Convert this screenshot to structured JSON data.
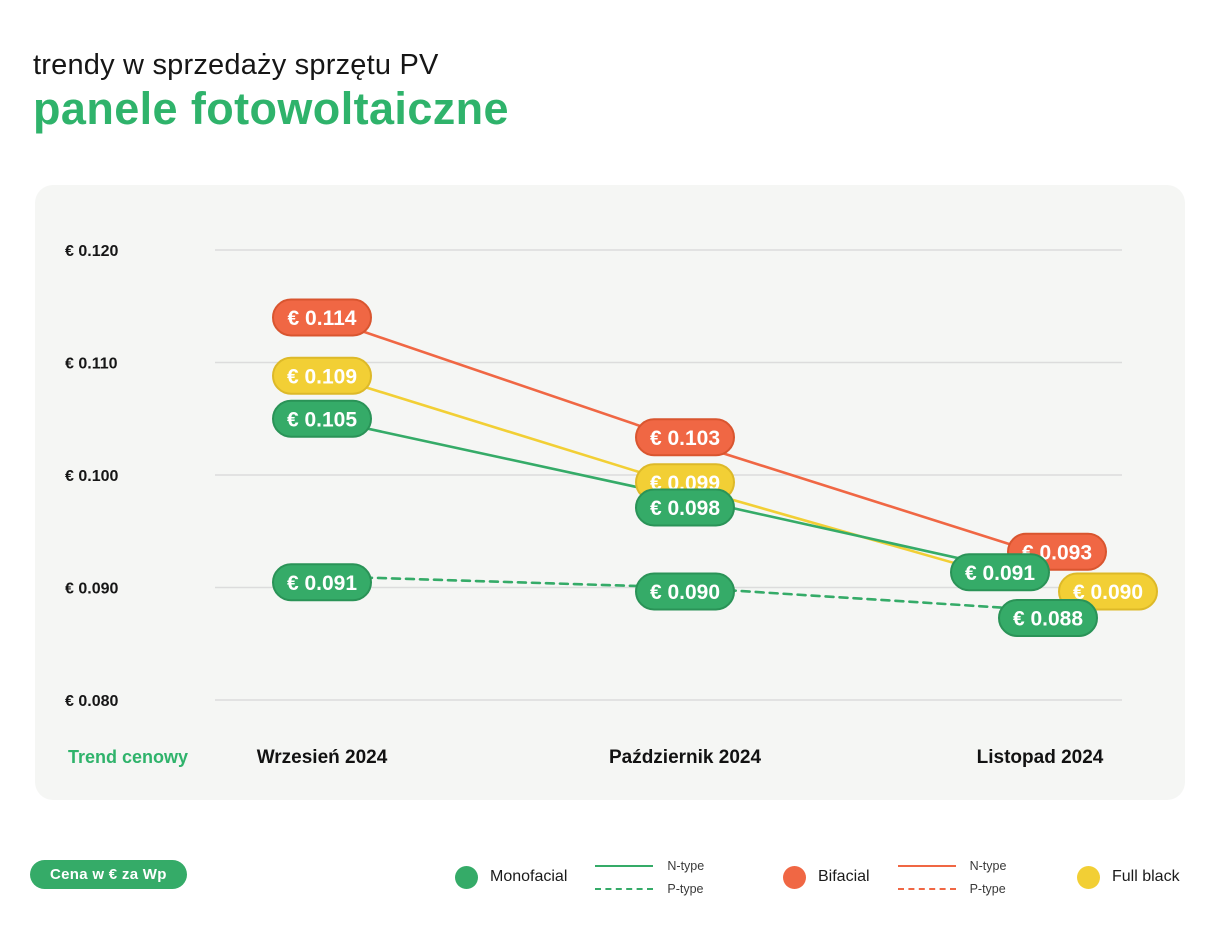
{
  "header": {
    "subtitle": "trendy w sprzedaży sprzętu PV",
    "title": "panele fotowoltaiczne"
  },
  "colors": {
    "green": "#35ab68",
    "green_border": "#2a9357",
    "orange": "#f06744",
    "orange_border": "#d9552f",
    "yellow": "#f2cf35",
    "yellow_border": "#ddb928",
    "title_green": "#2fb36b",
    "grid": "#dcdcdc",
    "card_bg": "#f5f6f4",
    "text_dark": "#161616"
  },
  "chart_data": {
    "type": "line",
    "title": "panele fotowoltaiczne",
    "xlabel": "",
    "ylabel": "Cena w € za Wp",
    "categories": [
      "Wrzesień 2024",
      "Październik 2024",
      "Listopad 2024"
    ],
    "y_ticks": [
      "€ 0.120",
      "€ 0.110",
      "€ 0.100",
      "€ 0.090",
      "€ 0.080"
    ],
    "y_tick_values": [
      0.12,
      0.11,
      0.1,
      0.09,
      0.08
    ],
    "ylim": [
      0.08,
      0.12
    ],
    "grid": true,
    "legend_position": "bottom",
    "axis_caption": "Trend cenowy",
    "series": [
      {
        "name": "Bifacial N-type",
        "panel": "Bifacial",
        "line_type": "N-type",
        "style": "solid",
        "color": "#f06744",
        "border": "#d9552f",
        "values": [
          0.114,
          0.103,
          0.093
        ],
        "labels": [
          "€ 0.114",
          "€ 0.103",
          "€ 0.093"
        ]
      },
      {
        "name": "Full black",
        "panel": "Full black",
        "line_type": "N-type",
        "style": "solid",
        "color": "#f2cf35",
        "border": "#ddb928",
        "values": [
          0.109,
          0.099,
          0.09
        ],
        "labels": [
          "€ 0.109",
          "€ 0.099",
          "€ 0.090"
        ]
      },
      {
        "name": "Monofacial N-type",
        "panel": "Monofacial",
        "line_type": "N-type",
        "style": "solid",
        "color": "#35ab68",
        "border": "#2a9357",
        "values": [
          0.105,
          0.098,
          0.091
        ],
        "labels": [
          "€ 0.105",
          "€ 0.098",
          "€ 0.091"
        ]
      },
      {
        "name": "Monofacial P-type",
        "panel": "Monofacial",
        "line_type": "P-type",
        "style": "dashed",
        "color": "#35ab68",
        "border": "#2a9357",
        "values": [
          0.091,
          0.09,
          0.088
        ],
        "labels": [
          "€ 0.091",
          "€ 0.090",
          "€ 0.088"
        ]
      }
    ]
  },
  "footer": {
    "price_badge": "Cena w € za Wp",
    "groups": [
      {
        "label": "Monofacial",
        "color": "#35ab68",
        "line_types": [
          "N-type",
          "P-type"
        ]
      },
      {
        "label": "Bifacial",
        "color": "#f06744",
        "line_types": [
          "N-type",
          "P-type"
        ]
      },
      {
        "label": "Full black",
        "color": "#f2cf35",
        "line_types": []
      }
    ]
  }
}
